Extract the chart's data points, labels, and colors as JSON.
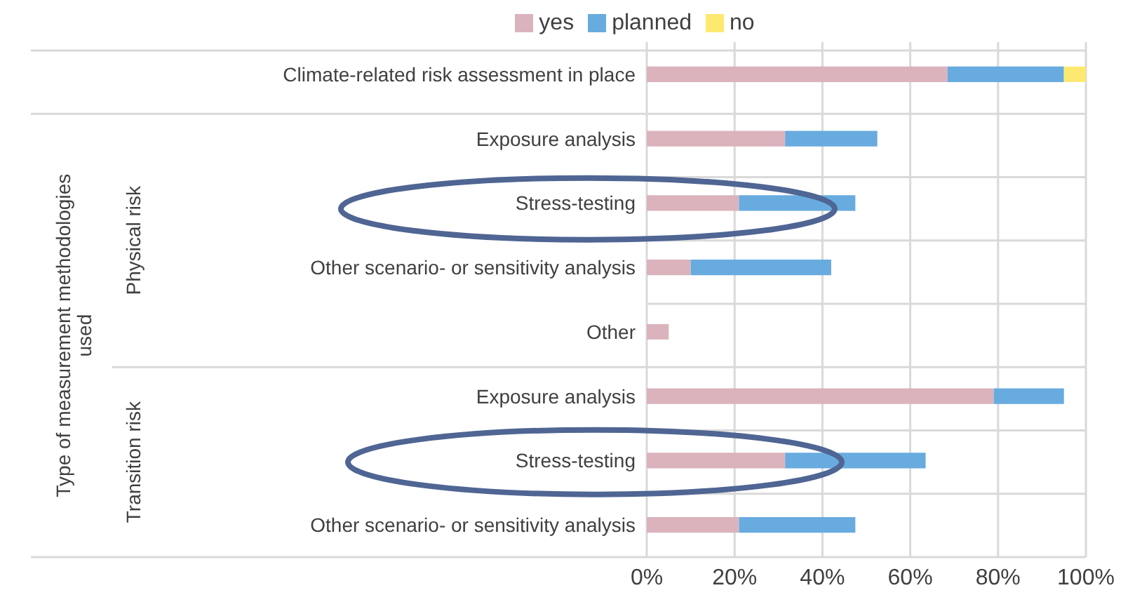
{
  "chart_data": {
    "type": "bar",
    "orientation": "horizontal",
    "stacked": true,
    "annotations": [
      "Type of measurement methodologies used",
      "Physical risk",
      "Transition risk"
    ],
    "categories": [
      "Climate-related risk assessment in place",
      "Exposure analysis",
      "Stress-testing",
      "Other scenario- or sensitivity analysis",
      "Other",
      "Exposure analysis",
      "Stress-testing",
      "Other scenario- or sensitivity analysis"
    ],
    "series": [
      {
        "name": "yes",
        "color": "#dbb3bd",
        "values": [
          68.5,
          31.5,
          21,
          10,
          5,
          79,
          31.5,
          21
        ]
      },
      {
        "name": "planned",
        "color": "#68abdf",
        "values": [
          26.5,
          21,
          26.5,
          32,
          null,
          16,
          32,
          26.5
        ]
      },
      {
        "name": "no",
        "color": "#fde96f",
        "values": [
          5,
          null,
          null,
          null,
          null,
          null,
          null,
          null
        ]
      }
    ],
    "xlim": [
      0,
      100
    ],
    "xticks": [
      {
        "value": 0,
        "label": "0%"
      },
      {
        "value": 20,
        "label": "20%"
      },
      {
        "value": 40,
        "label": "40%"
      },
      {
        "value": 60,
        "label": "60%"
      },
      {
        "value": 80,
        "label": "80%"
      },
      {
        "value": 100,
        "label": "100%"
      }
    ],
    "grid": true,
    "legend": "top"
  }
}
